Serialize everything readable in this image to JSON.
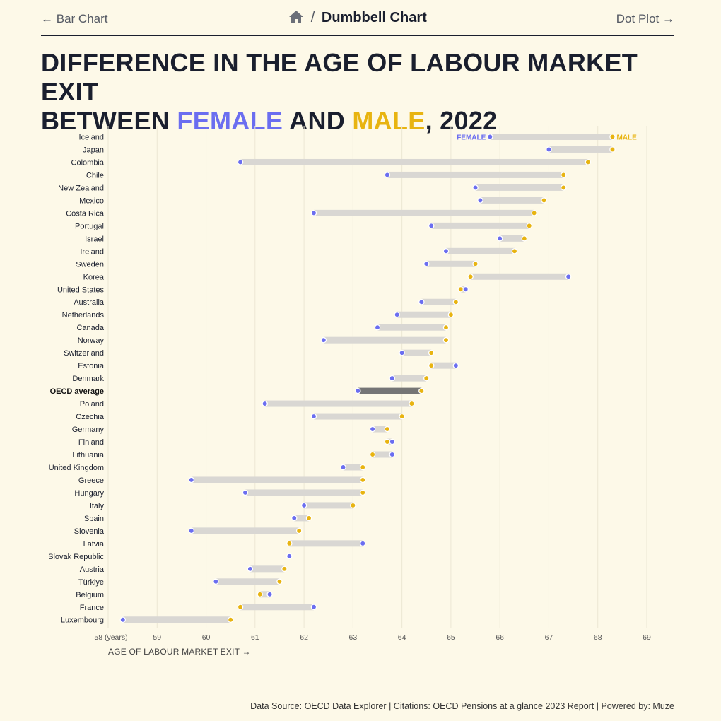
{
  "nav": {
    "prev_label": "Bar Chart",
    "current_label": "Dumbbell Chart",
    "next_label": "Dot Plot",
    "separator": "/"
  },
  "title": {
    "line1": "DIFFERENCE IN THE AGE OF LABOUR MARKET EXIT",
    "line2_prefix": "BETWEEN ",
    "female_word": "FEMALE",
    "and_word": " AND ",
    "male_word": "MALE",
    "suffix": ", 2022"
  },
  "colors": {
    "female": "#6b6ef0",
    "male": "#e8b411",
    "bar": "#d9d7d3",
    "highlight_bar": "#757575",
    "background": "#fdf9e8"
  },
  "chart_data": {
    "type": "dumbbell",
    "xlabel": "AGE OF LABOUR MARKET EXIT →",
    "xlim": [
      58,
      69
    ],
    "x_ticks": [
      "58 (years)",
      "59",
      "60",
      "61",
      "62",
      "63",
      "64",
      "65",
      "66",
      "67",
      "68",
      "69"
    ],
    "series_labels": {
      "female": "FEMALE",
      "male": "MALE"
    },
    "highlight": "OECD average",
    "rows": [
      {
        "country": "Iceland",
        "female": 65.8,
        "male": 68.3
      },
      {
        "country": "Japan",
        "female": 67.0,
        "male": 68.3
      },
      {
        "country": "Colombia",
        "female": 60.7,
        "male": 67.8
      },
      {
        "country": "Chile",
        "female": 63.7,
        "male": 67.3
      },
      {
        "country": "New Zealand",
        "female": 65.5,
        "male": 67.3
      },
      {
        "country": "Mexico",
        "female": 65.6,
        "male": 66.9
      },
      {
        "country": "Costa Rica",
        "female": 62.2,
        "male": 66.7
      },
      {
        "country": "Portugal",
        "female": 64.6,
        "male": 66.6
      },
      {
        "country": "Israel",
        "female": 66.0,
        "male": 66.5
      },
      {
        "country": "Ireland",
        "female": 64.9,
        "male": 66.3
      },
      {
        "country": "Sweden",
        "female": 64.5,
        "male": 65.5
      },
      {
        "country": "Korea",
        "female": 67.4,
        "male": 65.4
      },
      {
        "country": "United States",
        "female": 65.3,
        "male": 65.2
      },
      {
        "country": "Australia",
        "female": 64.4,
        "male": 65.1
      },
      {
        "country": "Netherlands",
        "female": 63.9,
        "male": 65.0
      },
      {
        "country": "Canada",
        "female": 63.5,
        "male": 64.9
      },
      {
        "country": "Norway",
        "female": 62.4,
        "male": 64.9
      },
      {
        "country": "Switzerland",
        "female": 64.0,
        "male": 64.6
      },
      {
        "country": "Estonia",
        "female": 65.1,
        "male": 64.6
      },
      {
        "country": "Denmark",
        "female": 63.8,
        "male": 64.5
      },
      {
        "country": "OECD average",
        "female": 63.1,
        "male": 64.4
      },
      {
        "country": "Poland",
        "female": 61.2,
        "male": 64.2
      },
      {
        "country": "Czechia",
        "female": 62.2,
        "male": 64.0
      },
      {
        "country": "Germany",
        "female": 63.4,
        "male": 63.7
      },
      {
        "country": "Finland",
        "female": 63.8,
        "male": 63.7
      },
      {
        "country": "Lithuania",
        "female": 63.8,
        "male": 63.4
      },
      {
        "country": "United Kingdom",
        "female": 62.8,
        "male": 63.2
      },
      {
        "country": "Greece",
        "female": 59.7,
        "male": 63.2
      },
      {
        "country": "Hungary",
        "female": 60.8,
        "male": 63.2
      },
      {
        "country": "Italy",
        "female": 62.0,
        "male": 63.0
      },
      {
        "country": "Spain",
        "female": 61.8,
        "male": 62.1
      },
      {
        "country": "Slovenia",
        "female": 59.7,
        "male": 61.9
      },
      {
        "country": "Latvia",
        "female": 63.2,
        "male": 61.7
      },
      {
        "country": "Slovak Republic",
        "female": 61.7,
        "male": 61.7
      },
      {
        "country": "Austria",
        "female": 60.9,
        "male": 61.6
      },
      {
        "country": "Türkiye",
        "female": 60.2,
        "male": 61.5
      },
      {
        "country": "Belgium",
        "female": 61.3,
        "male": 61.1
      },
      {
        "country": "France",
        "female": 62.2,
        "male": 60.7
      },
      {
        "country": "Luxembourg",
        "female": 58.3,
        "male": 60.5
      }
    ]
  },
  "footer": {
    "text": "Data Source: OECD Data Explorer | Citations: OECD Pensions at a glance 2023 Report | Powered by: Muze"
  }
}
